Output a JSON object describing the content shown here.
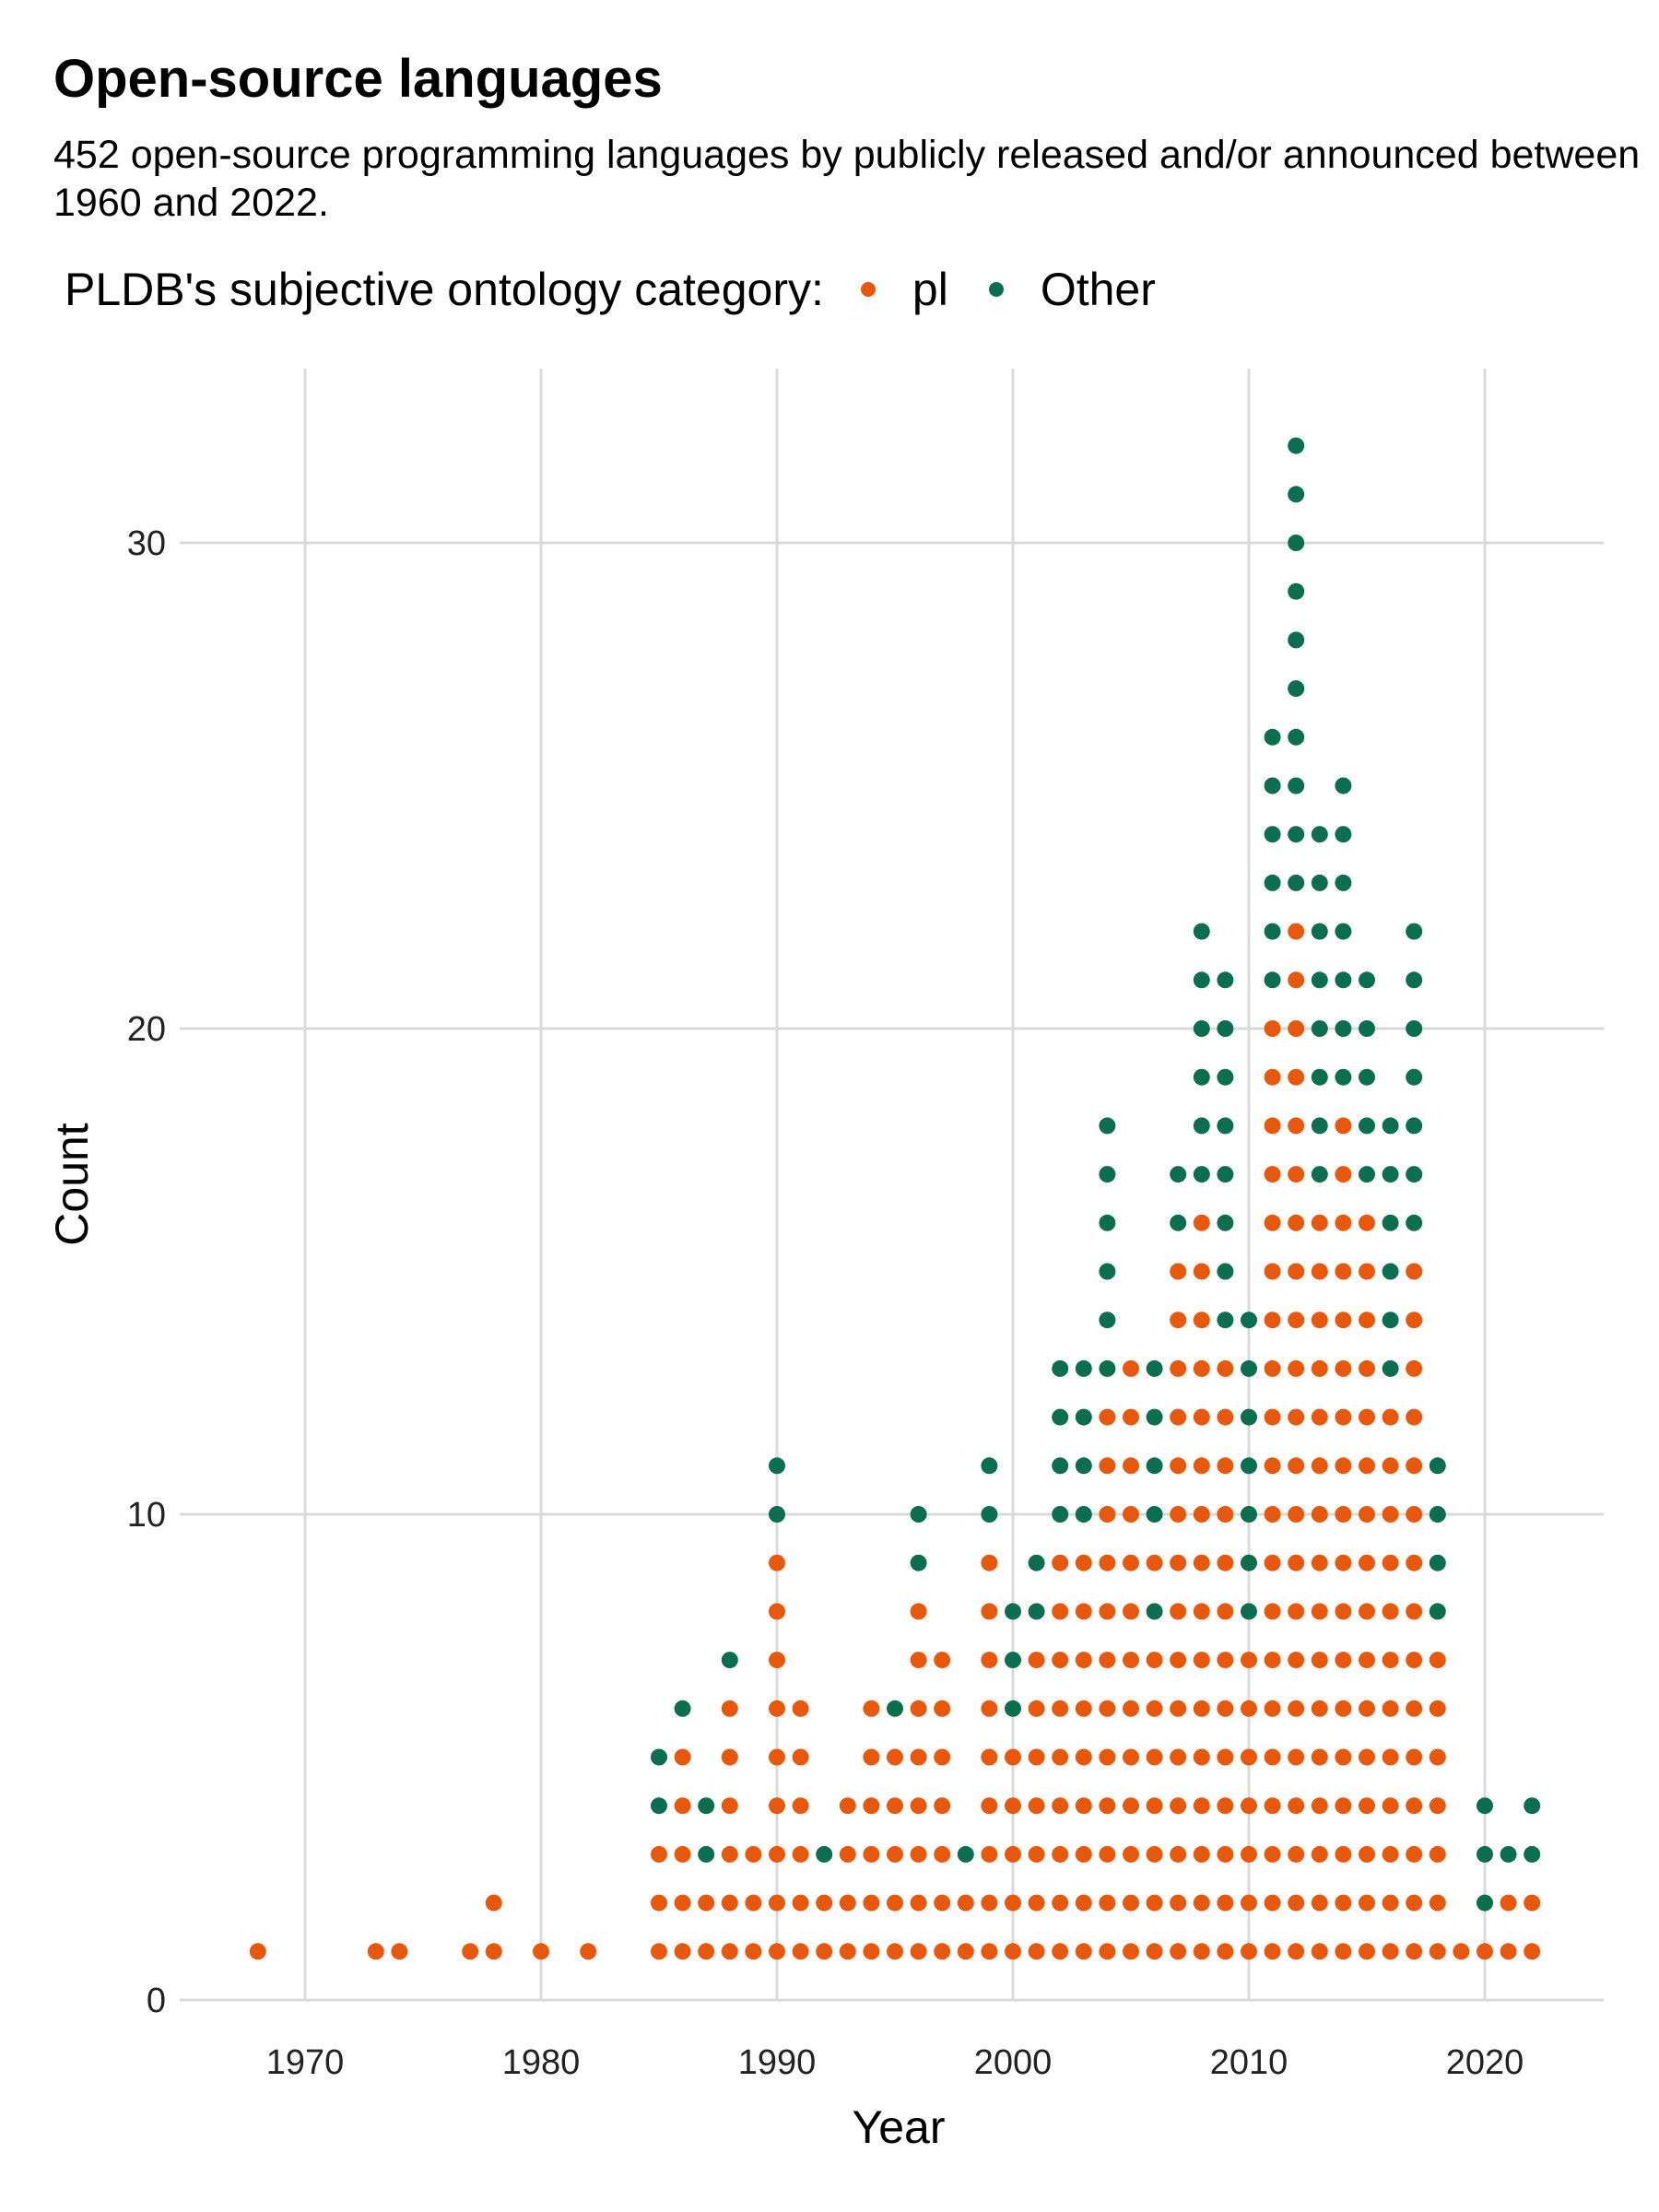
{
  "title": "Open-source languages",
  "subtitle": "452 open-source programming languages by publicly released and/or announced between 1960 and 2022.",
  "legend": {
    "title": "PLDB's subjective ontology category:",
    "items": [
      {
        "label": "pl",
        "color": "#e8580c"
      },
      {
        "label": "Other",
        "color": "#0b6e4f"
      }
    ]
  },
  "chart_data": {
    "type": "scatter",
    "style": "dot-plot (stacked dots per year)",
    "xlabel": "Year",
    "ylabel": "Count",
    "xlim": [
      1965,
      2025
    ],
    "ylim": [
      0,
      32
    ],
    "xticks": [
      1970,
      1980,
      1990,
      2000,
      2010,
      2020
    ],
    "yticks": [
      0,
      10,
      20,
      30
    ],
    "grid": true,
    "legend_position": "top",
    "series_order": [
      "pl",
      "Other"
    ],
    "colors": {
      "pl": "#e8580c",
      "Other": "#0b6e4f"
    },
    "columns": [
      {
        "year": 1968,
        "stack": [
          "pl"
        ]
      },
      {
        "year": 1973,
        "stack": [
          "pl"
        ]
      },
      {
        "year": 1974,
        "stack": [
          "pl"
        ]
      },
      {
        "year": 1977,
        "stack": [
          "pl"
        ]
      },
      {
        "year": 1978,
        "stack": [
          "pl",
          "pl"
        ]
      },
      {
        "year": 1980,
        "stack": [
          "pl"
        ]
      },
      {
        "year": 1982,
        "stack": [
          "pl"
        ]
      },
      {
        "year": 1985,
        "stack": [
          "pl",
          "pl",
          "pl",
          "Other",
          "Other"
        ]
      },
      {
        "year": 1986,
        "stack": [
          "pl",
          "pl",
          "pl",
          "pl",
          "pl",
          "Other"
        ]
      },
      {
        "year": 1987,
        "stack": [
          "pl",
          "pl",
          "Other",
          "Other"
        ]
      },
      {
        "year": 1988,
        "stack": [
          "pl",
          "pl",
          "pl",
          "pl",
          "pl",
          "pl",
          "Other"
        ]
      },
      {
        "year": 1989,
        "stack": [
          "pl",
          "pl",
          "pl"
        ]
      },
      {
        "year": 1990,
        "stack": [
          "pl",
          "pl",
          "pl",
          "pl",
          "pl",
          "pl",
          "pl",
          "pl",
          "pl",
          "Other",
          "Other"
        ]
      },
      {
        "year": 1991,
        "stack": [
          "pl",
          "pl",
          "pl",
          "pl",
          "pl",
          "pl"
        ]
      },
      {
        "year": 1992,
        "stack": [
          "pl",
          "pl",
          "Other"
        ]
      },
      {
        "year": 1993,
        "stack": [
          "pl",
          "pl",
          "pl",
          "pl"
        ]
      },
      {
        "year": 1994,
        "stack": [
          "pl",
          "pl",
          "pl",
          "pl",
          "pl",
          "pl"
        ]
      },
      {
        "year": 1995,
        "stack": [
          "pl",
          "pl",
          "pl",
          "pl",
          "pl",
          "Other"
        ]
      },
      {
        "year": 1996,
        "stack": [
          "pl",
          "pl",
          "pl",
          "pl",
          "pl",
          "pl",
          "pl",
          "pl",
          "Other",
          "Other"
        ]
      },
      {
        "year": 1997,
        "stack": [
          "pl",
          "pl",
          "pl",
          "pl",
          "pl",
          "pl",
          "pl"
        ]
      },
      {
        "year": 1998,
        "stack": [
          "pl",
          "pl",
          "Other"
        ]
      },
      {
        "year": 1999,
        "stack": [
          "pl",
          "pl",
          "pl",
          "pl",
          "pl",
          "pl",
          "pl",
          "pl",
          "pl",
          "Other",
          "Other"
        ]
      },
      {
        "year": 2000,
        "stack": [
          "pl",
          "pl",
          "pl",
          "pl",
          "pl",
          "Other",
          "Other",
          "Other"
        ]
      },
      {
        "year": 2001,
        "stack": [
          "pl",
          "pl",
          "pl",
          "pl",
          "pl",
          "pl",
          "pl",
          "Other",
          "Other"
        ]
      },
      {
        "year": 2002,
        "stack": [
          "pl",
          "pl",
          "pl",
          "pl",
          "pl",
          "pl",
          "pl",
          "pl",
          "pl",
          "Other",
          "Other",
          "Other",
          "Other"
        ]
      },
      {
        "year": 2003,
        "stack": [
          "pl",
          "pl",
          "pl",
          "pl",
          "pl",
          "pl",
          "pl",
          "pl",
          "pl",
          "Other",
          "Other",
          "Other",
          "Other"
        ]
      },
      {
        "year": 2004,
        "stack": [
          "pl",
          "pl",
          "pl",
          "pl",
          "pl",
          "pl",
          "pl",
          "pl",
          "pl",
          "pl",
          "pl",
          "pl",
          "Other",
          "Other",
          "Other",
          "Other",
          "Other",
          "Other"
        ]
      },
      {
        "year": 2005,
        "stack": [
          "pl",
          "pl",
          "pl",
          "pl",
          "pl",
          "pl",
          "pl",
          "pl",
          "pl",
          "pl",
          "pl",
          "pl",
          "pl"
        ]
      },
      {
        "year": 2006,
        "stack": [
          "pl",
          "pl",
          "pl",
          "pl",
          "pl",
          "pl",
          "pl",
          "Other",
          "pl",
          "Other",
          "Other",
          "Other",
          "Other"
        ]
      },
      {
        "year": 2007,
        "stack": [
          "pl",
          "pl",
          "pl",
          "pl",
          "pl",
          "pl",
          "pl",
          "pl",
          "pl",
          "pl",
          "pl",
          "pl",
          "pl",
          "pl",
          "pl",
          "Other",
          "Other"
        ]
      },
      {
        "year": 2008,
        "stack": [
          "pl",
          "pl",
          "pl",
          "pl",
          "pl",
          "pl",
          "pl",
          "pl",
          "pl",
          "pl",
          "pl",
          "pl",
          "pl",
          "pl",
          "pl",
          "pl",
          "Other",
          "Other",
          "Other",
          "Other",
          "Other",
          "Other"
        ]
      },
      {
        "year": 2009,
        "stack": [
          "pl",
          "pl",
          "pl",
          "pl",
          "pl",
          "pl",
          "pl",
          "pl",
          "pl",
          "pl",
          "pl",
          "pl",
          "pl",
          "Other",
          "Other",
          "Other",
          "Other",
          "Other",
          "Other",
          "Other",
          "Other"
        ]
      },
      {
        "year": 2010,
        "stack": [
          "pl",
          "pl",
          "pl",
          "pl",
          "pl",
          "pl",
          "pl",
          "Other",
          "Other",
          "Other",
          "Other",
          "Other",
          "Other",
          "Other"
        ]
      },
      {
        "year": 2011,
        "stack": [
          "pl",
          "pl",
          "pl",
          "pl",
          "pl",
          "pl",
          "pl",
          "pl",
          "pl",
          "pl",
          "pl",
          "pl",
          "pl",
          "pl",
          "pl",
          "pl",
          "pl",
          "pl",
          "pl",
          "pl",
          "Other",
          "Other",
          "Other",
          "Other",
          "Other",
          "Other"
        ]
      },
      {
        "year": 2012,
        "stack": [
          "pl",
          "pl",
          "pl",
          "pl",
          "pl",
          "pl",
          "pl",
          "pl",
          "pl",
          "pl",
          "pl",
          "pl",
          "pl",
          "pl",
          "pl",
          "pl",
          "pl",
          "pl",
          "pl",
          "pl",
          "pl",
          "pl",
          "Other",
          "Other",
          "Other",
          "Other",
          "Other",
          "Other",
          "Other",
          "Other",
          "Other",
          "Other"
        ]
      },
      {
        "year": 2013,
        "stack": [
          "pl",
          "pl",
          "pl",
          "pl",
          "pl",
          "pl",
          "pl",
          "pl",
          "pl",
          "pl",
          "pl",
          "pl",
          "pl",
          "pl",
          "pl",
          "pl",
          "Other",
          "Other",
          "Other",
          "Other",
          "Other",
          "Other",
          "Other",
          "Other"
        ]
      },
      {
        "year": 2014,
        "stack": [
          "pl",
          "pl",
          "pl",
          "pl",
          "pl",
          "pl",
          "pl",
          "pl",
          "pl",
          "pl",
          "pl",
          "pl",
          "pl",
          "pl",
          "pl",
          "pl",
          "pl",
          "pl",
          "Other",
          "Other",
          "Other",
          "Other",
          "Other",
          "Other",
          "Other"
        ]
      },
      {
        "year": 2015,
        "stack": [
          "pl",
          "pl",
          "pl",
          "pl",
          "pl",
          "pl",
          "pl",
          "pl",
          "pl",
          "pl",
          "pl",
          "pl",
          "pl",
          "pl",
          "pl",
          "pl",
          "Other",
          "Other",
          "Other",
          "Other",
          "Other"
        ]
      },
      {
        "year": 2016,
        "stack": [
          "pl",
          "pl",
          "pl",
          "pl",
          "pl",
          "pl",
          "pl",
          "pl",
          "pl",
          "pl",
          "pl",
          "pl",
          "Other",
          "Other",
          "Other",
          "Other",
          "Other",
          "Other"
        ]
      },
      {
        "year": 2017,
        "stack": [
          "pl",
          "pl",
          "pl",
          "pl",
          "pl",
          "pl",
          "pl",
          "pl",
          "pl",
          "pl",
          "pl",
          "pl",
          "pl",
          "pl",
          "pl",
          "Other",
          "Other",
          "Other",
          "Other",
          "Other",
          "Other",
          "Other"
        ]
      },
      {
        "year": 2018,
        "stack": [
          "pl",
          "pl",
          "pl",
          "pl",
          "pl",
          "pl",
          "pl",
          "Other",
          "Other",
          "Other",
          "Other"
        ]
      },
      {
        "year": 2019,
        "stack": [
          "pl"
        ]
      },
      {
        "year": 2020,
        "stack": [
          "pl",
          "Other",
          "Other",
          "Other"
        ]
      },
      {
        "year": 2021,
        "stack": [
          "pl",
          "pl",
          "Other"
        ]
      },
      {
        "year": 2022,
        "stack": [
          "pl",
          "pl",
          "Other",
          "Other"
        ]
      }
    ]
  }
}
